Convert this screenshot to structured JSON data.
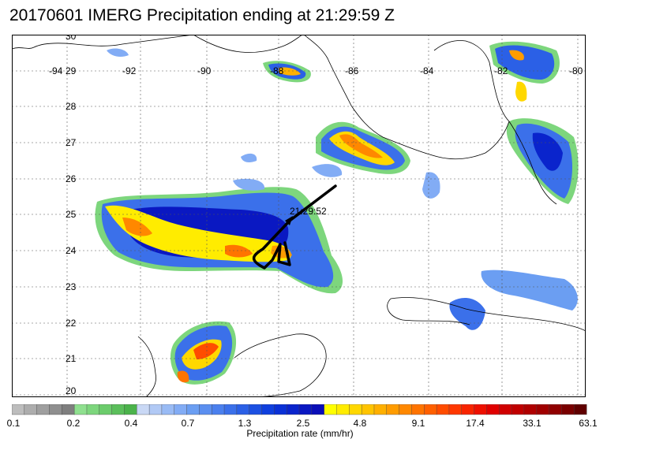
{
  "title": "20170601 IMERG Precipitation ending at 21:29:59 Z",
  "map": {
    "lon_labels": [
      "-94",
      "-92",
      "-90",
      "-88",
      "-86",
      "-84",
      "-82",
      "-80"
    ],
    "lat_labels": [
      "30",
      "29",
      "28",
      "27",
      "26",
      "25",
      "24",
      "23",
      "22",
      "21",
      "20"
    ],
    "track_time_label": "21:29:52"
  },
  "colorbar": {
    "tick_labels": [
      "0.1",
      "0.2",
      "0.4",
      "0.7",
      "1.3",
      "2.5",
      "4.8",
      "9.1",
      "17.4",
      "33.1",
      "63.1"
    ],
    "title": "Precipitation rate (mm/hr)",
    "colors": [
      "#bdbdbd",
      "#adadad",
      "#9f9f9f",
      "#8f8f8f",
      "#7f7f7f",
      "#8fe08f",
      "#7dd67d",
      "#6ccc6c",
      "#5bbf5b",
      "#4bb34b",
      "#c9d8f5",
      "#b1c9f5",
      "#99bbf5",
      "#82acf5",
      "#6b9ef2",
      "#5b8ff0",
      "#4b80ee",
      "#3b70ea",
      "#2b60e6",
      "#1c50e2",
      "#0f3fde",
      "#0a30d6",
      "#0a24cc",
      "#0a18c2",
      "#0a0eb8",
      "#ffff00",
      "#ffec00",
      "#ffd800",
      "#ffc400",
      "#ffb000",
      "#ff9c00",
      "#ff8800",
      "#ff7400",
      "#ff6000",
      "#ff4c00",
      "#ff3800",
      "#f82400",
      "#ee1000",
      "#e00000",
      "#d00000",
      "#c00000",
      "#b00000",
      "#a00000",
      "#900000",
      "#7a0000",
      "#600000"
    ]
  }
}
